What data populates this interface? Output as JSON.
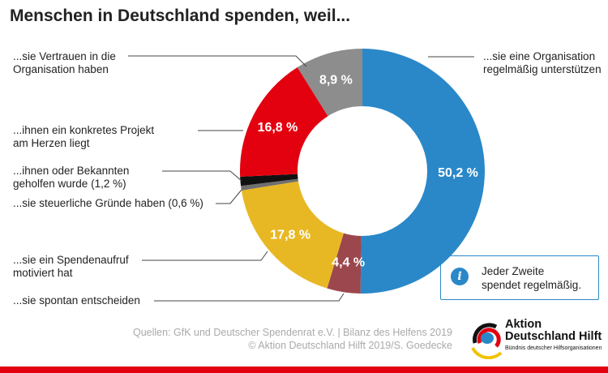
{
  "title": "Menschen in Deutschland spenden, weil...",
  "chart_data": {
    "type": "pie",
    "donut": true,
    "start": "12 o'clock, clockwise",
    "slices": [
      {
        "label": "...sie eine Organisation regelmäßig unterstützen",
        "value": 50.2,
        "text": "50,2 %",
        "color": "#2a88c9"
      },
      {
        "label": "...sie spontan entscheiden",
        "value": 4.4,
        "text": "4,4 %",
        "color": "#9c474d"
      },
      {
        "label": "...sie ein Spendenaufruf motiviert hat",
        "value": 17.8,
        "text": "17,8 %",
        "color": "#e8b824"
      },
      {
        "label": "...sie steuerliche Gründe haben (0,6 %)",
        "value": 0.6,
        "text": "",
        "color": "#6f6f6f"
      },
      {
        "label": "...ihnen oder Bekannten geholfen wurde (1,2 %)",
        "value": 1.2,
        "text": "",
        "color": "#111111"
      },
      {
        "label": "...ihnen ein konkretes Projekt am Herzen liegt",
        "value": 16.8,
        "text": "16,8 %",
        "color": "#e3000f"
      },
      {
        "label": "...sie Vertrauen in die Organisation haben",
        "value": 8.9,
        "text": "8,9 %",
        "color": "#8d8d8d"
      }
    ]
  },
  "labels": {
    "l0a": "...sie eine Organisation",
    "l0b": "regelmäßig unterstützen",
    "l1": "...sie spontan entscheiden",
    "l2a": "...sie ein Spendenaufruf",
    "l2b": "motiviert hat",
    "l3": "...sie steuerliche Gründe haben (0,6 %)",
    "l4a": "...ihnen oder Bekannten",
    "l4b": "geholfen wurde (1,2 %)",
    "l5a": "...ihnen ein konkretes Projekt",
    "l5b": "am Herzen liegt",
    "l6a": "...sie Vertrauen in die",
    "l6b": "Organisation haben"
  },
  "info": {
    "icon": "info-icon",
    "line1": "Jeder Zweite",
    "line2": "spendet regelmäßig."
  },
  "source": {
    "line1": "Quellen: GfK und Deutscher Spendenrat e.V. | Bilanz des Helfens 2019",
    "line2": "© Aktion Deutschland Hilft 2019/S. Goedecke"
  },
  "logo": {
    "line1": "Aktion",
    "line2": "Deutschland Hilft",
    "line3": "Bündnis deutscher Hilfsorganisationen"
  },
  "accent": "#e3000f"
}
